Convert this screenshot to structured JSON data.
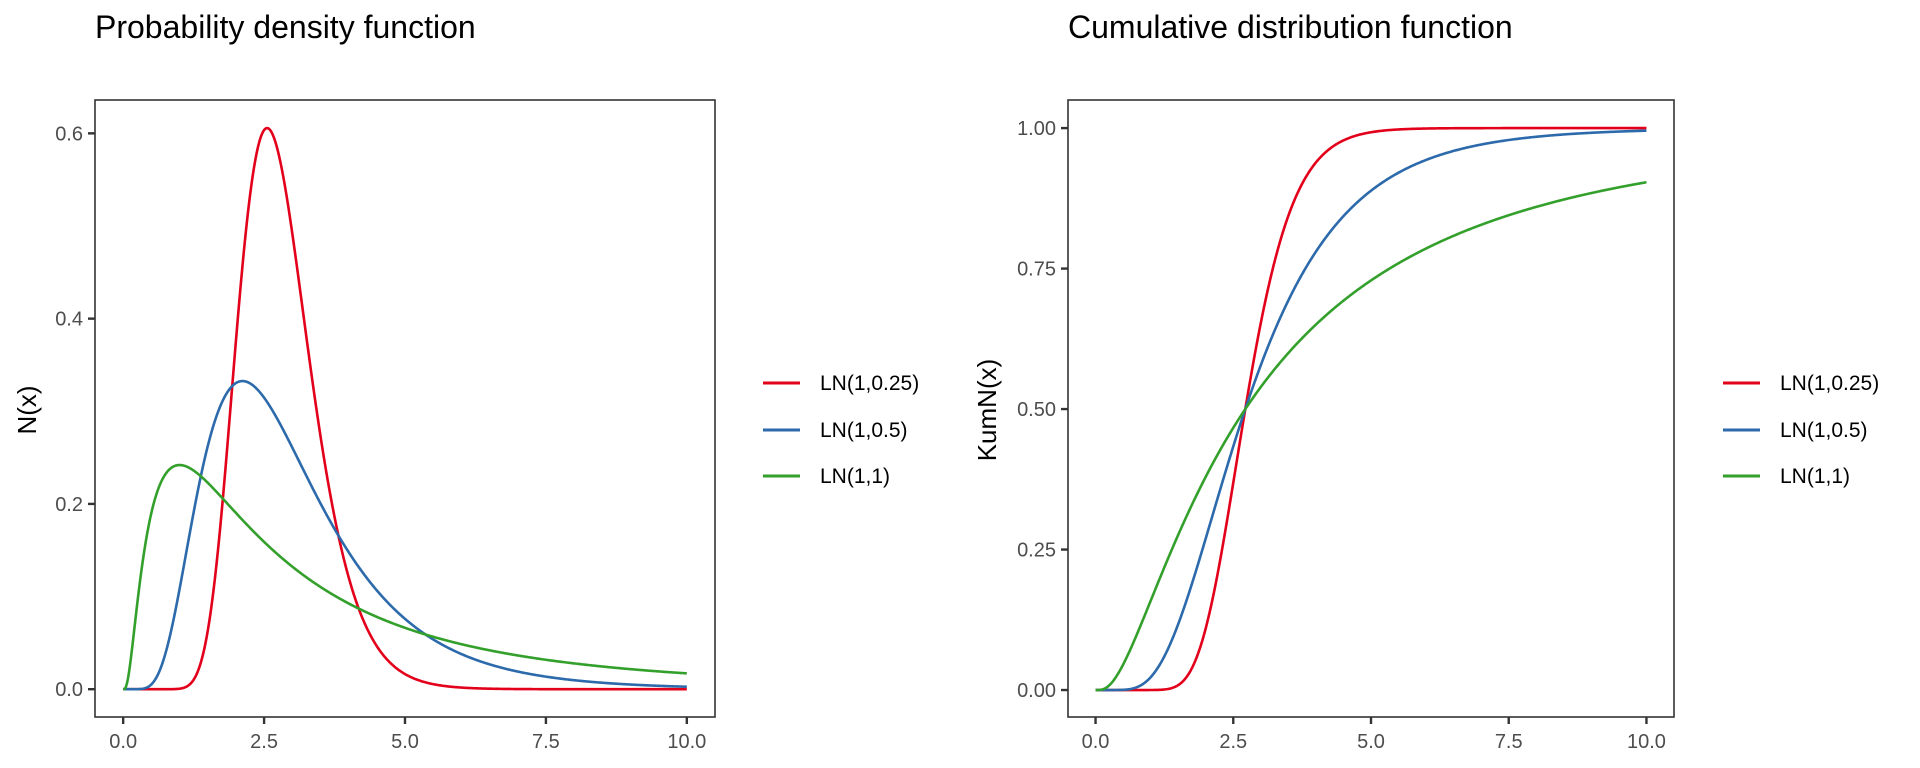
{
  "chart_data": [
    {
      "type": "line",
      "title": "Probability density function",
      "xlabel": "",
      "ylabel": "N(x)",
      "xlim": [
        0,
        10
      ],
      "ylim": [
        -0.03,
        0.636
      ],
      "xticks": [
        0,
        2.5,
        5,
        7.5,
        10
      ],
      "xtick_labels": [
        "0.0",
        "2.5",
        "5.0",
        "7.5",
        "10.0"
      ],
      "yticks": [
        0,
        0.2,
        0.4,
        0.6
      ],
      "ytick_labels": [
        "0.0",
        "0.2",
        "0.4",
        "0.6"
      ],
      "grid": false,
      "legend_position": "right",
      "function": "pdf",
      "x": [
        0.5,
        1,
        1.5,
        2,
        2.5,
        3,
        4,
        5,
        6,
        7.5,
        10
      ],
      "series": [
        {
          "name": "LN(1,0.25)",
          "meanlog": 1,
          "sdlog": 0.25,
          "color": "#E3001B",
          "values": [
            0.0,
            0.0005,
            0.063,
            0.376,
            0.603,
            0.492,
            0.121,
            0.016,
            0.002,
            0.0001,
            0.0
          ]
        },
        {
          "name": "LN(1,0.5)",
          "meanlog": 1,
          "sdlog": 0.5,
          "color": "#2C6AAB",
          "values": [
            0.005,
            0.108,
            0.262,
            0.33,
            0.315,
            0.261,
            0.148,
            0.076,
            0.038,
            0.014,
            0.003
          ]
        },
        {
          "name": "LN(1,1)",
          "meanlog": 1,
          "sdlog": 1,
          "color": "#34A02C",
          "values": [
            0.19,
            0.242,
            0.223,
            0.19,
            0.159,
            0.132,
            0.093,
            0.066,
            0.049,
            0.032,
            0.017
          ]
        }
      ]
    },
    {
      "type": "line",
      "title": "Cumulative distribution function",
      "xlabel": "",
      "ylabel": "KumN(x)",
      "xlim": [
        0,
        10
      ],
      "ylim": [
        -0.048,
        1.05
      ],
      "xticks": [
        0,
        2.5,
        5,
        7.5,
        10
      ],
      "xtick_labels": [
        "0.0",
        "2.5",
        "5.0",
        "7.5",
        "10.0"
      ],
      "yticks": [
        0,
        0.25,
        0.5,
        0.75,
        1
      ],
      "ytick_labels": [
        "0.00",
        "0.25",
        "0.50",
        "0.75",
        "1.00"
      ],
      "grid": false,
      "legend_position": "right",
      "function": "cdf",
      "x": [
        0.5,
        1,
        1.5,
        2,
        2.5,
        3,
        4,
        5,
        6,
        7.5,
        10
      ],
      "series": [
        {
          "name": "LN(1,0.25)",
          "meanlog": 1,
          "sdlog": 0.25,
          "color": "#E3001B",
          "values": [
            0.0,
            0.0,
            0.009,
            0.11,
            0.369,
            0.653,
            0.939,
            0.993,
            0.999,
            1.0,
            1.0
          ]
        },
        {
          "name": "LN(1,0.5)",
          "meanlog": 1,
          "sdlog": 0.5,
          "color": "#2C6AAB",
          "values": [
            0.0004,
            0.023,
            0.117,
            0.27,
            0.434,
            0.578,
            0.78,
            0.889,
            0.943,
            0.979,
            0.995
          ]
        },
        {
          "name": "LN(1,1)",
          "meanlog": 1,
          "sdlog": 1,
          "color": "#34A02C",
          "values": [
            0.045,
            0.159,
            0.276,
            0.38,
            0.467,
            0.539,
            0.65,
            0.729,
            0.786,
            0.845,
            0.904
          ]
        }
      ]
    }
  ]
}
